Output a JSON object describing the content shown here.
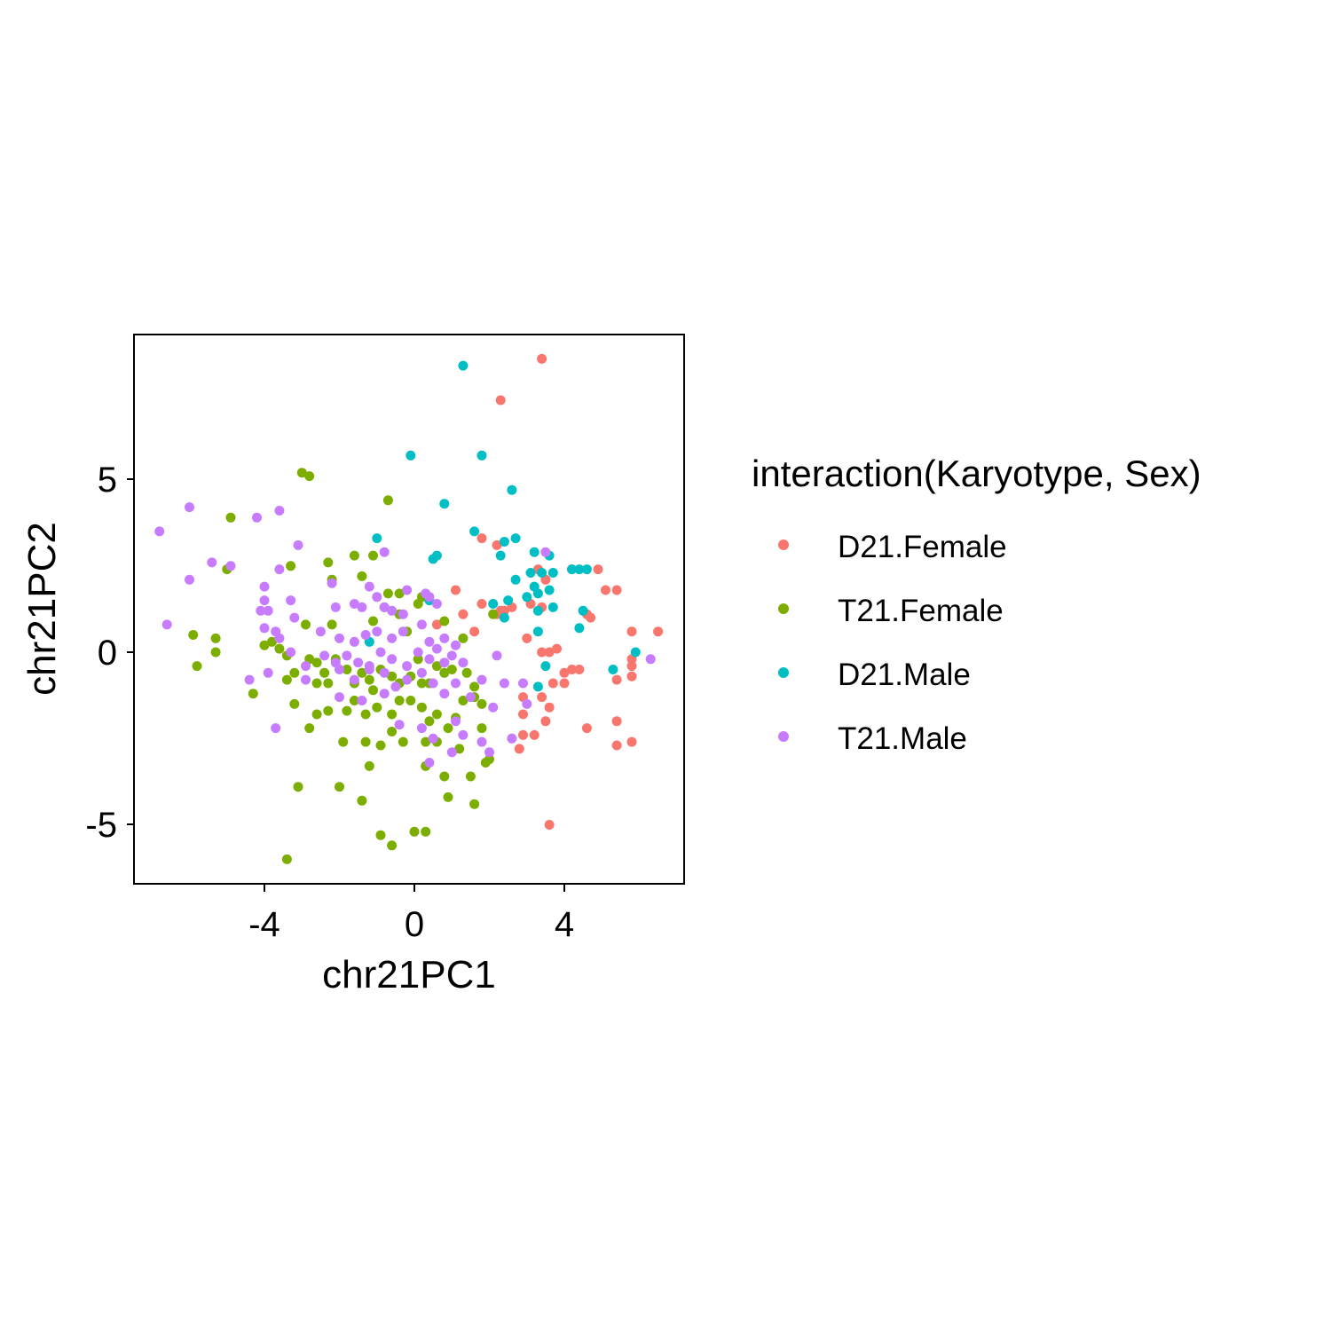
{
  "chart_data": {
    "type": "scatter",
    "title": "",
    "xlabel": "chr21PC1",
    "ylabel": "chr21PC2",
    "xlim": [
      -7.3,
      7.3
    ],
    "ylim": [
      -6.7,
      9.2
    ],
    "x_ticks": [
      -4,
      0,
      4
    ],
    "y_ticks": [
      -5,
      0,
      5
    ],
    "x_tick_labels": [
      "-4",
      "0",
      "4"
    ],
    "y_tick_labels": [
      "-5",
      "0",
      "5"
    ],
    "grid": false,
    "legend": {
      "title": "interaction(Karyotype, Sex)",
      "position": "right"
    },
    "series": [
      {
        "name": "D21.Female",
        "color": "#F8766D",
        "points": [
          [
            3.4,
            8.5
          ],
          [
            2.3,
            7.3
          ],
          [
            1.8,
            3.3
          ],
          [
            2.2,
            3.1
          ],
          [
            3.3,
            2.4
          ],
          [
            3.5,
            2.1
          ],
          [
            4.2,
            2.4
          ],
          [
            4.9,
            2.4
          ],
          [
            5.4,
            1.8
          ],
          [
            5.1,
            1.8
          ],
          [
            1.1,
            1.8
          ],
          [
            1.8,
            1.4
          ],
          [
            2.6,
            1.3
          ],
          [
            2.3,
            1.2
          ],
          [
            3.1,
            1.4
          ],
          [
            3.4,
            1.3
          ],
          [
            4.6,
            1.1
          ],
          [
            4.7,
            1.0
          ],
          [
            0.6,
            0.8
          ],
          [
            1.6,
            0.6
          ],
          [
            1.3,
            1.1
          ],
          [
            2.2,
            1.1
          ],
          [
            2.4,
            1.2
          ],
          [
            3.0,
            0.4
          ],
          [
            3.6,
            0.0
          ],
          [
            3.8,
            0.1
          ],
          [
            3.4,
            0.0
          ],
          [
            4.2,
            -0.5
          ],
          [
            4.4,
            -0.5
          ],
          [
            4.0,
            -0.6
          ],
          [
            5.8,
            0.6
          ],
          [
            6.5,
            0.6
          ],
          [
            5.8,
            -0.2
          ],
          [
            5.8,
            -0.4
          ],
          [
            5.8,
            -0.7
          ],
          [
            5.4,
            -0.8
          ],
          [
            3.7,
            -0.9
          ],
          [
            4.0,
            -0.9
          ],
          [
            2.9,
            -1.3
          ],
          [
            3.4,
            -1.3
          ],
          [
            3.6,
            -1.6
          ],
          [
            3.5,
            -2.0
          ],
          [
            2.9,
            -1.8
          ],
          [
            5.4,
            -2.0
          ],
          [
            4.6,
            -2.2
          ],
          [
            2.9,
            -2.4
          ],
          [
            3.2,
            -2.4
          ],
          [
            5.4,
            -2.7
          ],
          [
            5.8,
            -2.6
          ],
          [
            2.8,
            -2.8
          ],
          [
            3.6,
            -5.0
          ]
        ]
      },
      {
        "name": "T21.Female",
        "color": "#7CAE00",
        "points": [
          [
            -3.0,
            5.2
          ],
          [
            -2.8,
            5.1
          ],
          [
            -0.7,
            4.4
          ],
          [
            -4.9,
            3.9
          ],
          [
            -3.3,
            2.5
          ],
          [
            -5.0,
            2.4
          ],
          [
            -1.6,
            2.8
          ],
          [
            -1.1,
            2.8
          ],
          [
            -2.3,
            2.6
          ],
          [
            -1.4,
            2.2
          ],
          [
            -2.2,
            2.1
          ],
          [
            -0.4,
            1.7
          ],
          [
            -0.7,
            1.7
          ],
          [
            -0.8,
            1.3
          ],
          [
            -0.4,
            1.1
          ],
          [
            -0.2,
            0.6
          ],
          [
            -1.1,
            0.9
          ],
          [
            -2.2,
            0.8
          ],
          [
            -2.9,
            0.8
          ],
          [
            0.1,
            1.4
          ],
          [
            0.2,
            1.6
          ],
          [
            0.8,
            0.9
          ],
          [
            2.1,
            1.1
          ],
          [
            1.3,
            0.4
          ],
          [
            -5.9,
            0.5
          ],
          [
            -5.3,
            0.4
          ],
          [
            -5.3,
            0.0
          ],
          [
            -4.0,
            0.2
          ],
          [
            -3.8,
            0.3
          ],
          [
            -3.6,
            0.1
          ],
          [
            -3.4,
            -0.1
          ],
          [
            -3.2,
            -0.6
          ],
          [
            -2.8,
            -0.2
          ],
          [
            -2.6,
            -0.3
          ],
          [
            -2.6,
            -0.9
          ],
          [
            -2.4,
            -0.6
          ],
          [
            -2.3,
            -0.9
          ],
          [
            -2.1,
            -0.2
          ],
          [
            -1.8,
            -0.5
          ],
          [
            -1.6,
            -0.9
          ],
          [
            -1.4,
            -0.6
          ],
          [
            -1.2,
            -0.8
          ],
          [
            -1.1,
            -1.1
          ],
          [
            -0.9,
            -0.5
          ],
          [
            -0.6,
            -0.7
          ],
          [
            -0.4,
            -0.9
          ],
          [
            -0.1,
            -0.7
          ],
          [
            0.1,
            -0.2
          ],
          [
            0.2,
            -0.9
          ],
          [
            0.4,
            -0.9
          ],
          [
            0.6,
            -0.4
          ],
          [
            0.8,
            -0.6
          ],
          [
            1.0,
            -0.5
          ],
          [
            1.4,
            -0.6
          ],
          [
            1.6,
            -1.0
          ],
          [
            -5.8,
            -0.4
          ],
          [
            -4.3,
            -1.2
          ],
          [
            -3.4,
            -0.8
          ],
          [
            -3.2,
            -1.5
          ],
          [
            -2.6,
            -1.8
          ],
          [
            -2.3,
            -1.7
          ],
          [
            -1.8,
            -1.7
          ],
          [
            -1.6,
            -1.4
          ],
          [
            -1.3,
            -1.8
          ],
          [
            -1.0,
            -1.6
          ],
          [
            -0.6,
            -1.8
          ],
          [
            -0.4,
            -1.4
          ],
          [
            -0.1,
            -1.4
          ],
          [
            0.2,
            -1.6
          ],
          [
            0.4,
            -2.0
          ],
          [
            0.6,
            -1.8
          ],
          [
            0.9,
            -2.2
          ],
          [
            1.1,
            -1.9
          ],
          [
            1.3,
            -1.4
          ],
          [
            1.6,
            -1.3
          ],
          [
            1.8,
            -1.5
          ],
          [
            -2.8,
            -2.2
          ],
          [
            -1.9,
            -2.6
          ],
          [
            -1.3,
            -2.6
          ],
          [
            -0.9,
            -2.7
          ],
          [
            -0.6,
            -2.3
          ],
          [
            -0.3,
            -2.6
          ],
          [
            0.3,
            -2.6
          ],
          [
            0.6,
            -2.6
          ],
          [
            1.2,
            -2.8
          ],
          [
            1.8,
            -2.2
          ],
          [
            2.0,
            -3.1
          ],
          [
            1.9,
            -3.2
          ],
          [
            0.3,
            -3.3
          ],
          [
            -1.2,
            -3.3
          ],
          [
            -3.1,
            -3.9
          ],
          [
            -2.0,
            -3.9
          ],
          [
            0.8,
            -3.6
          ],
          [
            1.5,
            -3.6
          ],
          [
            0.9,
            -4.2
          ],
          [
            1.6,
            -4.4
          ],
          [
            -1.4,
            -4.3
          ],
          [
            -0.9,
            -5.3
          ],
          [
            -0.6,
            -5.6
          ],
          [
            0.0,
            -5.2
          ],
          [
            0.3,
            -5.2
          ],
          [
            -3.4,
            -6.0
          ]
        ]
      },
      {
        "name": "D21.Male",
        "color": "#00BFC4",
        "points": [
          [
            1.3,
            8.3
          ],
          [
            -0.1,
            5.7
          ],
          [
            1.8,
            5.7
          ],
          [
            2.6,
            4.7
          ],
          [
            0.8,
            4.3
          ],
          [
            1.6,
            3.5
          ],
          [
            2.4,
            3.2
          ],
          [
            2.7,
            3.3
          ],
          [
            -1.0,
            3.3
          ],
          [
            0.5,
            2.7
          ],
          [
            0.6,
            2.8
          ],
          [
            2.3,
            2.8
          ],
          [
            3.2,
            2.9
          ],
          [
            3.6,
            2.8
          ],
          [
            2.7,
            2.1
          ],
          [
            3.1,
            2.3
          ],
          [
            3.4,
            2.3
          ],
          [
            3.7,
            2.3
          ],
          [
            4.2,
            2.4
          ],
          [
            4.4,
            2.4
          ],
          [
            4.6,
            2.4
          ],
          [
            3.2,
            1.9
          ],
          [
            3.3,
            1.7
          ],
          [
            3.6,
            1.8
          ],
          [
            3.0,
            1.6
          ],
          [
            2.5,
            1.5
          ],
          [
            0.4,
            1.5
          ],
          [
            2.1,
            1.4
          ],
          [
            3.3,
            1.2
          ],
          [
            3.7,
            1.3
          ],
          [
            4.5,
            1.2
          ],
          [
            2.4,
            1.0
          ],
          [
            3.3,
            0.6
          ],
          [
            4.4,
            0.7
          ],
          [
            -1.2,
            0.3
          ],
          [
            3.5,
            -0.4
          ],
          [
            5.3,
            -0.5
          ],
          [
            5.9,
            0.0
          ],
          [
            3.3,
            -1.0
          ]
        ]
      },
      {
        "name": "T21.Male",
        "color": "#C77CFF",
        "points": [
          [
            -6.8,
            3.5
          ],
          [
            -6.0,
            4.2
          ],
          [
            -4.2,
            3.9
          ],
          [
            -3.6,
            4.1
          ],
          [
            -3.1,
            3.1
          ],
          [
            -5.4,
            2.6
          ],
          [
            -4.9,
            2.5
          ],
          [
            -3.6,
            2.4
          ],
          [
            -2.2,
            2.0
          ],
          [
            -0.8,
            2.9
          ],
          [
            3.5,
            2.9
          ],
          [
            -6.0,
            2.1
          ],
          [
            -4.0,
            1.9
          ],
          [
            -4.0,
            1.5
          ],
          [
            -3.3,
            1.5
          ],
          [
            -2.1,
            1.3
          ],
          [
            -1.6,
            1.4
          ],
          [
            -1.4,
            1.3
          ],
          [
            -1.2,
            1.9
          ],
          [
            -1.0,
            1.6
          ],
          [
            -0.8,
            1.3
          ],
          [
            -0.6,
            1.2
          ],
          [
            -0.2,
            1.8
          ],
          [
            0.3,
            1.7
          ],
          [
            0.4,
            1.6
          ],
          [
            0.6,
            1.4
          ],
          [
            -4.1,
            1.2
          ],
          [
            -3.9,
            1.2
          ],
          [
            -3.2,
            1.0
          ],
          [
            -0.3,
            1.1
          ],
          [
            0.2,
            0.8
          ],
          [
            -6.6,
            0.8
          ],
          [
            -4.0,
            0.7
          ],
          [
            -3.7,
            0.6
          ],
          [
            -2.5,
            0.6
          ],
          [
            -2.0,
            0.4
          ],
          [
            -1.6,
            0.3
          ],
          [
            -1.3,
            0.5
          ],
          [
            -1.0,
            0.6
          ],
          [
            -0.6,
            0.4
          ],
          [
            -0.3,
            0.6
          ],
          [
            0.4,
            0.3
          ],
          [
            0.8,
            0.4
          ],
          [
            1.1,
            0.2
          ],
          [
            -3.6,
            0.4
          ],
          [
            -3.3,
            0.0
          ],
          [
            -2.9,
            -0.4
          ],
          [
            -2.4,
            -0.1
          ],
          [
            -2.1,
            -0.3
          ],
          [
            -1.8,
            -0.1
          ],
          [
            -1.5,
            -0.3
          ],
          [
            -1.2,
            -0.4
          ],
          [
            -0.9,
            0.0
          ],
          [
            -0.6,
            -0.2
          ],
          [
            -0.2,
            -0.4
          ],
          [
            0.1,
            0.0
          ],
          [
            0.4,
            -0.2
          ],
          [
            0.6,
            0.1
          ],
          [
            0.8,
            -0.3
          ],
          [
            1.0,
            -0.1
          ],
          [
            1.3,
            -0.3
          ],
          [
            2.2,
            -0.1
          ],
          [
            2.9,
            -0.9
          ],
          [
            -4.4,
            -0.8
          ],
          [
            -3.9,
            -0.6
          ],
          [
            -2.9,
            -0.8
          ],
          [
            -2.0,
            -0.5
          ],
          [
            -1.6,
            -0.8
          ],
          [
            -1.2,
            -0.5
          ],
          [
            -0.8,
            -0.6
          ],
          [
            -0.5,
            -1.0
          ],
          [
            -0.2,
            -0.8
          ],
          [
            0.2,
            -0.6
          ],
          [
            0.5,
            -0.9
          ],
          [
            0.8,
            -1.2
          ],
          [
            1.1,
            -0.9
          ],
          [
            1.5,
            -1.3
          ],
          [
            1.8,
            -0.8
          ],
          [
            2.4,
            -0.9
          ],
          [
            -3.7,
            -2.2
          ],
          [
            -2.0,
            -1.3
          ],
          [
            -1.4,
            -1.4
          ],
          [
            -0.8,
            -1.2
          ],
          [
            -0.4,
            -2.1
          ],
          [
            0.2,
            -2.2
          ],
          [
            0.5,
            -2.5
          ],
          [
            1.1,
            -2.0
          ],
          [
            1.3,
            -2.4
          ],
          [
            1.8,
            -2.6
          ],
          [
            2.1,
            -1.6
          ],
          [
            2.6,
            -2.5
          ],
          [
            2.0,
            -2.9
          ],
          [
            0.4,
            -3.2
          ],
          [
            1.0,
            -2.9
          ],
          [
            3.0,
            -1.5
          ],
          [
            6.3,
            -0.2
          ]
        ]
      }
    ]
  }
}
